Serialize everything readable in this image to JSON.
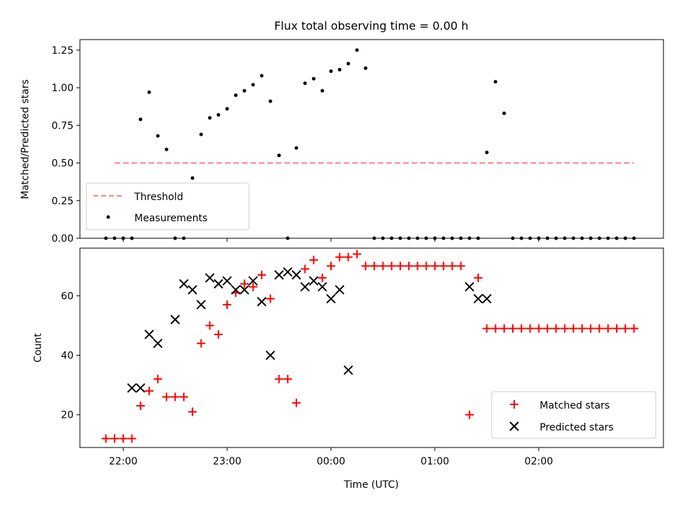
{
  "chart_data": [
    {
      "type": "scatter",
      "title": "Flux total observing time = 0.00 h",
      "ylabel": "Matched/Predicted stars",
      "xlabel": "",
      "ylim": [
        0,
        1.32
      ],
      "yticks": [
        0,
        0.25,
        0.5,
        0.75,
        1.0,
        1.25
      ],
      "ytick_labels": [
        "0.00",
        "0.25",
        "0.50",
        "0.75",
        "1.00",
        "1.25"
      ],
      "legend_position": "lower-left",
      "series": [
        {
          "name": "Threshold",
          "type": "line",
          "style": "dashed",
          "color": "#ff7f7f",
          "x": [
            "21:55",
            "23:00",
            "00:00",
            "01:00",
            "02:00",
            "02:55"
          ],
          "y": [
            0.5,
            0.5,
            0.5,
            0.5,
            0.5,
            0.5
          ]
        },
        {
          "name": "Measurements",
          "type": "scatter",
          "marker": "dot",
          "color": "#000000",
          "x": [
            "21:50",
            "21:55",
            "22:00",
            "22:05",
            "22:10",
            "22:15",
            "22:20",
            "22:25",
            "22:30",
            "22:35",
            "22:40",
            "22:45",
            "22:50",
            "22:55",
            "23:00",
            "23:05",
            "23:10",
            "23:15",
            "23:20",
            "23:25",
            "23:30",
            "23:35",
            "23:40",
            "23:45",
            "23:50",
            "23:55",
            "00:00",
            "00:05",
            "00:10",
            "00:15",
            "00:20",
            "00:25",
            "00:30",
            "00:35",
            "00:40",
            "00:45",
            "00:50",
            "00:55",
            "01:00",
            "01:05",
            "01:10",
            "01:15",
            "01:20",
            "01:25",
            "01:30",
            "01:35",
            "01:40",
            "01:45",
            "01:50",
            "01:55",
            "02:00",
            "02:05",
            "02:10",
            "02:15",
            "02:20",
            "02:25",
            "02:30",
            "02:35",
            "02:40",
            "02:45",
            "02:50",
            "02:55"
          ],
          "y": [
            0,
            0,
            0,
            0,
            0.79,
            0.97,
            0.68,
            0.59,
            0,
            0,
            0.4,
            0.69,
            0.8,
            0.82,
            0.86,
            0.95,
            0.98,
            1.02,
            1.08,
            0.91,
            0.55,
            0,
            0.6,
            1.03,
            1.06,
            0.98,
            1.11,
            1.12,
            1.16,
            1.25,
            1.13,
            0,
            0,
            0,
            0,
            0,
            0,
            0,
            0,
            0,
            0,
            0,
            0,
            0,
            0.57,
            1.04,
            0.83,
            0,
            0,
            0,
            0,
            0,
            0,
            0,
            0,
            0,
            0,
            0,
            0,
            0,
            0,
            0
          ]
        }
      ]
    },
    {
      "type": "scatter",
      "title": "",
      "ylabel": "Count",
      "xlabel": "Time (UTC)",
      "ylim": [
        9,
        76
      ],
      "yticks": [
        20,
        40,
        60
      ],
      "ytick_labels": [
        "20",
        "40",
        "60"
      ],
      "xlim": [
        "21:35",
        "03:12"
      ],
      "xticks": [
        "22:00",
        "23:00",
        "00:00",
        "01:00",
        "02:00"
      ],
      "legend_position": "lower-right",
      "series": [
        {
          "name": "Matched stars",
          "type": "scatter",
          "marker": "plus",
          "color": "#ff0000",
          "x": [
            "21:50",
            "21:55",
            "22:00",
            "22:05",
            "22:10",
            "22:15",
            "22:20",
            "22:25",
            "22:30",
            "22:35",
            "22:40",
            "22:45",
            "22:50",
            "22:55",
            "23:00",
            "23:05",
            "23:10",
            "23:15",
            "23:20",
            "23:25",
            "23:30",
            "23:35",
            "23:40",
            "23:45",
            "23:50",
            "23:55",
            "00:00",
            "00:05",
            "00:10",
            "00:15",
            "00:20",
            "00:25",
            "00:30",
            "00:35",
            "00:40",
            "00:45",
            "00:50",
            "00:55",
            "01:00",
            "01:05",
            "01:10",
            "01:15",
            "01:20",
            "01:25",
            "01:30",
            "01:35",
            "01:40",
            "01:45",
            "01:50",
            "01:55",
            "02:00",
            "02:05",
            "02:10",
            "02:15",
            "02:20",
            "02:25",
            "02:30",
            "02:35",
            "02:40",
            "02:45",
            "02:50",
            "02:55"
          ],
          "y": [
            12,
            12,
            12,
            12,
            23,
            28,
            32,
            26,
            26,
            26,
            21,
            44,
            50,
            47,
            57,
            61,
            64,
            63,
            67,
            59,
            32,
            32,
            24,
            69,
            72,
            66,
            70,
            73,
            73,
            74,
            70,
            70,
            70,
            70,
            70,
            70,
            70,
            70,
            70,
            70,
            70,
            70,
            20,
            66,
            49,
            49,
            49,
            49,
            49,
            49,
            49,
            49,
            49,
            49,
            49,
            49,
            49,
            49,
            49,
            49,
            49,
            49
          ]
        },
        {
          "name": "Predicted stars",
          "type": "scatter",
          "marker": "x",
          "color": "#000000",
          "x": [
            "22:05",
            "22:10",
            "22:15",
            "22:20",
            "22:30",
            "22:35",
            "22:40",
            "22:45",
            "22:50",
            "22:55",
            "23:00",
            "23:05",
            "23:10",
            "23:15",
            "23:20",
            "23:25",
            "23:30",
            "23:35",
            "23:40",
            "23:45",
            "23:50",
            "23:55",
            "00:00",
            "00:05",
            "00:10",
            "01:20",
            "01:25",
            "01:30"
          ],
          "y": [
            29,
            29,
            47,
            44,
            52,
            64,
            62,
            57,
            66,
            64,
            65,
            62,
            62,
            65,
            58,
            40,
            67,
            68,
            67,
            63,
            65,
            63,
            59,
            62,
            35,
            63,
            59,
            59
          ]
        }
      ]
    }
  ]
}
